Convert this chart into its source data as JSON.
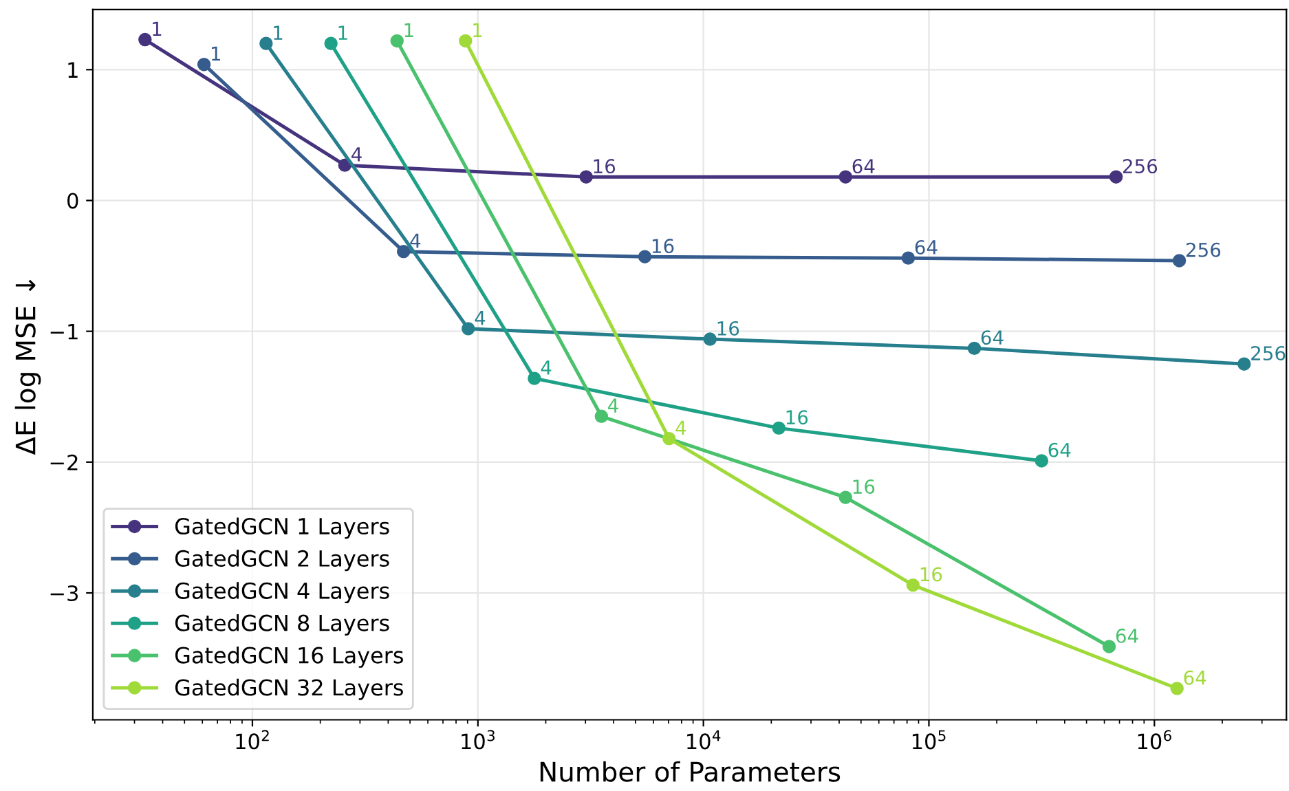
{
  "chart_data": {
    "type": "line",
    "xlabel": "Number of Parameters",
    "ylabel": "ΔE log MSE ↓",
    "log": "x",
    "grid": true,
    "legend": "bottom left",
    "marker": "circle",
    "line_style": "solid",
    "xlim": [
      19.6,
      3850000
    ],
    "ylim": [
      -3.97,
      1.46
    ],
    "xticks": [
      {
        "value": 100,
        "label": "10$^{2}$"
      },
      {
        "value": 1000,
        "label": "10$^{3}$"
      },
      {
        "value": 10000,
        "label": "10$^{4}$"
      },
      {
        "value": 100000,
        "label": "10$^{5}$"
      },
      {
        "value": 1000000,
        "label": "10$^{6}$"
      }
    ],
    "yticks": [
      {
        "value": -3,
        "label": "−3"
      },
      {
        "value": -2,
        "label": "−2"
      },
      {
        "value": -1,
        "label": "−1"
      },
      0,
      1
    ],
    "series": [
      {
        "name": "GatedGCN 1 Layers",
        "color": "#46337e",
        "x": [
          33.4,
          257,
          3020,
          42700,
          676000
        ],
        "values": [
          1.23,
          0.27,
          0.18,
          0.18,
          0.18
        ]
      },
      {
        "name": "GatedGCN 2 Layers",
        "color": "#365c8d",
        "x": [
          61,
          468,
          5500,
          81000,
          1290000
        ],
        "values": [
          1.04,
          -0.39,
          -0.43,
          -0.44,
          -0.46
        ]
      },
      {
        "name": "GatedGCN 4 Layers",
        "color": "#277f8e",
        "x": [
          115,
          906,
          10700,
          159000,
          2500000
        ],
        "values": [
          1.2,
          -0.98,
          -1.06,
          -1.13,
          -1.25
        ]
      },
      {
        "name": "GatedGCN 8 Layers",
        "color": "#1fa187",
        "x": [
          223,
          1780,
          21600,
          316000
        ],
        "values": [
          1.2,
          -1.36,
          -1.74,
          -1.99
        ]
      },
      {
        "name": "GatedGCN 16 Layers",
        "color": "#4ac16d",
        "x": [
          438,
          3530,
          42700,
          630000
        ],
        "values": [
          1.22,
          -1.65,
          -2.27,
          -3.41
        ]
      },
      {
        "name": "GatedGCN 32 Layers",
        "color": "#a0da39",
        "x": [
          881,
          7040,
          85000,
          1260000
        ],
        "values": [
          1.22,
          -1.82,
          -2.94,
          -3.73
        ]
      }
    ],
    "annotations": [
      {
        "text": "1",
        "x": 33.4,
        "y": 1.23
      },
      {
        "text": "4",
        "x": 257,
        "y": 0.27
      },
      {
        "text": "16",
        "x": 3020,
        "y": 0.18
      },
      {
        "text": "64",
        "x": 42700,
        "y": 0.18
      },
      {
        "text": "256",
        "x": 676000,
        "y": 0.18
      },
      {
        "text": "1",
        "x": 61,
        "y": 1.04
      },
      {
        "text": "4",
        "x": 468,
        "y": -0.39
      },
      {
        "text": "16",
        "x": 5500,
        "y": -0.43
      },
      {
        "text": "64",
        "x": 81000,
        "y": -0.44
      },
      {
        "text": "256",
        "x": 1290000,
        "y": -0.46
      },
      {
        "text": "1",
        "x": 115,
        "y": 1.2
      },
      {
        "text": "4",
        "x": 906,
        "y": -0.98
      },
      {
        "text": "16",
        "x": 10700,
        "y": -1.06
      },
      {
        "text": "64",
        "x": 159000,
        "y": -1.13
      },
      {
        "text": "256",
        "x": 2500000,
        "y": -1.25
      },
      {
        "text": "1",
        "x": 223,
        "y": 1.2
      },
      {
        "text": "4",
        "x": 1780,
        "y": -1.36
      },
      {
        "text": "16",
        "x": 21600,
        "y": -1.74
      },
      {
        "text": "64",
        "x": 316000,
        "y": -1.99
      },
      {
        "text": "1",
        "x": 438,
        "y": 1.22
      },
      {
        "text": "4",
        "x": 3530,
        "y": -1.65
      },
      {
        "text": "16",
        "x": 42700,
        "y": -2.27
      },
      {
        "text": "64",
        "x": 630000,
        "y": -3.41
      },
      {
        "text": "1",
        "x": 881,
        "y": 1.22
      },
      {
        "text": "4",
        "x": 7040,
        "y": -1.82
      },
      {
        "text": "16",
        "x": 85000,
        "y": -2.94
      },
      {
        "text": "64",
        "x": 1260000,
        "y": -3.73
      }
    ]
  }
}
